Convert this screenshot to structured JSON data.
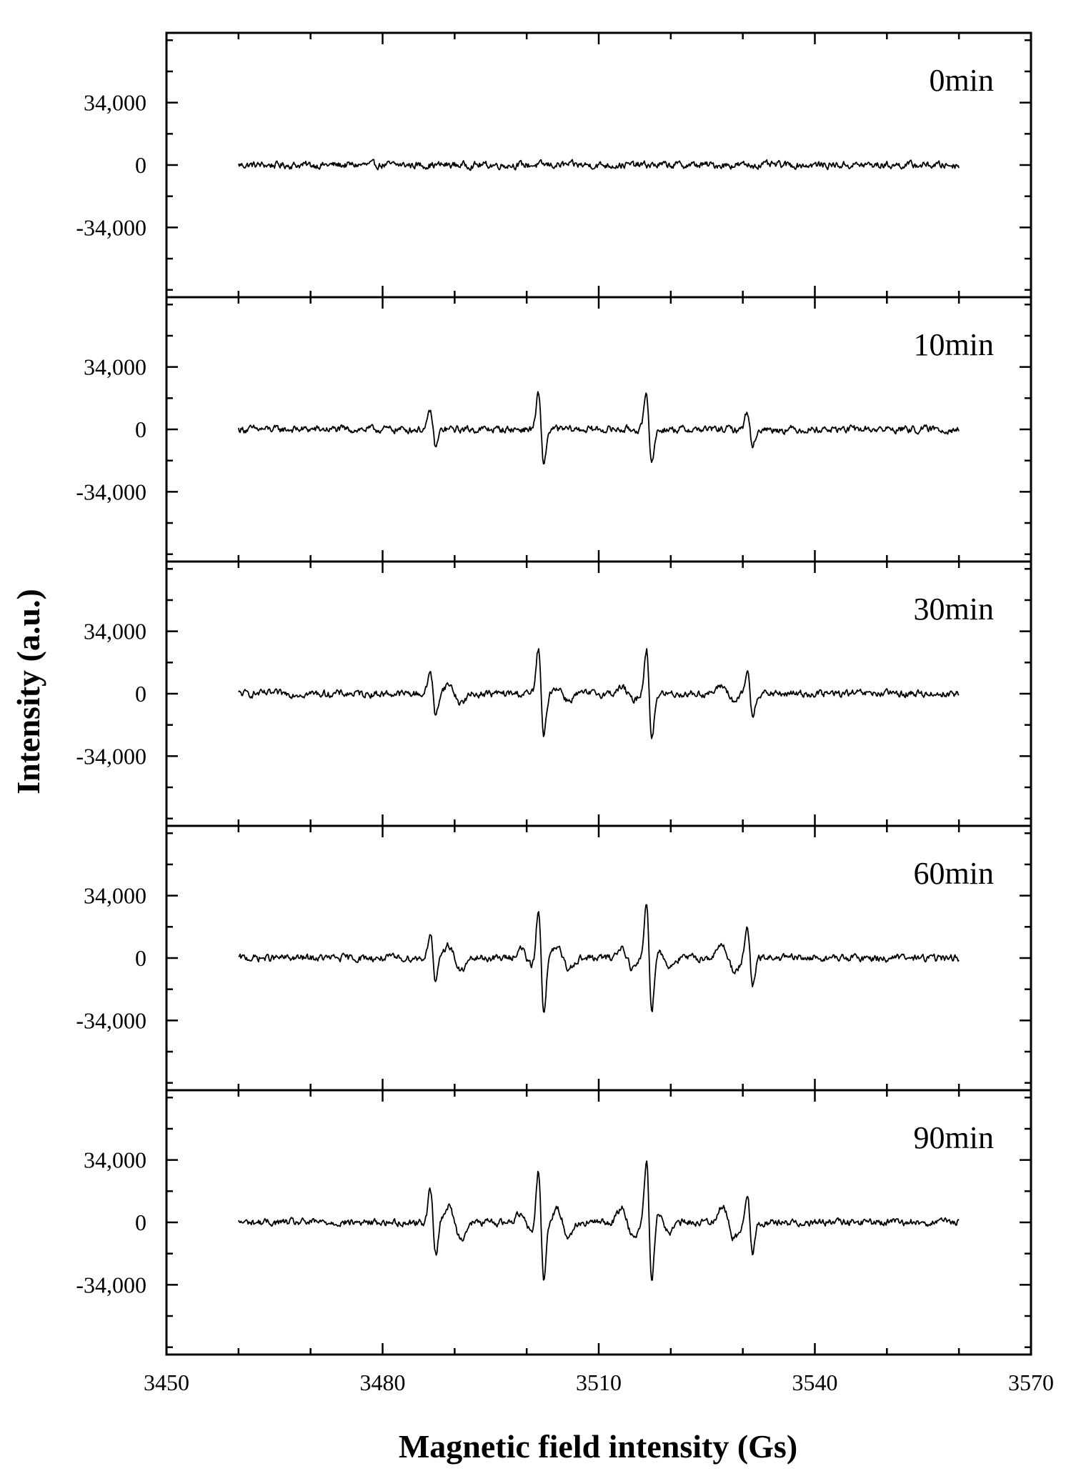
{
  "chart_data": {
    "type": "line",
    "xlabel": "Magnetic field intensity (Gs)",
    "ylabel": "Intensity (a.u.)",
    "xlim": [
      3450,
      3570
    ],
    "x_ticks": [
      3450,
      3480,
      3510,
      3540,
      3570
    ],
    "x_tick_labels": [
      "3450",
      "3480",
      "3510",
      "3540",
      "3570"
    ],
    "ylim": [
      -72000,
      72000
    ],
    "y_ticks": [
      34000,
      0,
      -34000
    ],
    "y_tick_labels": [
      "34,000",
      "0",
      "-34,000"
    ],
    "grid": false,
    "line_color": "#000000",
    "x_range_of_data": [
      3460,
      3560
    ],
    "panels": [
      {
        "label": "0min",
        "peaks": []
      },
      {
        "label": "10min",
        "peaks": [
          {
            "x": 3487,
            "amp": 14000,
            "w": 0.55
          },
          {
            "x": 3502,
            "amp": 27000,
            "w": 0.55
          },
          {
            "x": 3517,
            "amp": 26000,
            "w": 0.55
          },
          {
            "x": 3531,
            "amp": 14000,
            "w": 0.55
          }
        ]
      },
      {
        "label": "30min",
        "peaks": [
          {
            "x": 3487,
            "amp": 18000,
            "w": 0.55
          },
          {
            "x": 3490,
            "amp": 7000,
            "w": 1.2
          },
          {
            "x": 3502,
            "amp": 34000,
            "w": 0.55
          },
          {
            "x": 3505,
            "amp": 5000,
            "w": 1.1
          },
          {
            "x": 3514,
            "amp": 5000,
            "w": 1.1
          },
          {
            "x": 3517,
            "amp": 35000,
            "w": 0.55
          },
          {
            "x": 3528,
            "amp": 6000,
            "w": 1.2
          },
          {
            "x": 3531,
            "amp": 17000,
            "w": 0.55
          }
        ]
      },
      {
        "label": "60min",
        "peaks": [
          {
            "x": 3487,
            "amp": 20000,
            "w": 0.55
          },
          {
            "x": 3490,
            "amp": 10000,
            "w": 1.2
          },
          {
            "x": 3500,
            "amp": 7000,
            "w": 1.1
          },
          {
            "x": 3502,
            "amp": 40000,
            "w": 0.55
          },
          {
            "x": 3505,
            "amp": 8000,
            "w": 1.1
          },
          {
            "x": 3514,
            "amp": 8000,
            "w": 1.1
          },
          {
            "x": 3517,
            "amp": 42000,
            "w": 0.55
          },
          {
            "x": 3519,
            "amp": 6000,
            "w": 1.1
          },
          {
            "x": 3528,
            "amp": 10000,
            "w": 1.2
          },
          {
            "x": 3531,
            "amp": 22000,
            "w": 0.55
          }
        ]
      },
      {
        "label": "90min",
        "peaks": [
          {
            "x": 3487,
            "amp": 25000,
            "w": 0.55
          },
          {
            "x": 3490,
            "amp": 12000,
            "w": 1.2
          },
          {
            "x": 3500,
            "amp": 8000,
            "w": 1.1
          },
          {
            "x": 3502,
            "amp": 44000,
            "w": 0.55
          },
          {
            "x": 3505,
            "amp": 10000,
            "w": 1.1
          },
          {
            "x": 3514,
            "amp": 11000,
            "w": 1.1
          },
          {
            "x": 3517,
            "amp": 46000,
            "w": 0.55
          },
          {
            "x": 3519,
            "amp": 8000,
            "w": 1.1
          },
          {
            "x": 3528,
            "amp": 12000,
            "w": 1.2
          },
          {
            "x": 3531,
            "amp": 24000,
            "w": 0.55
          }
        ]
      }
    ]
  }
}
